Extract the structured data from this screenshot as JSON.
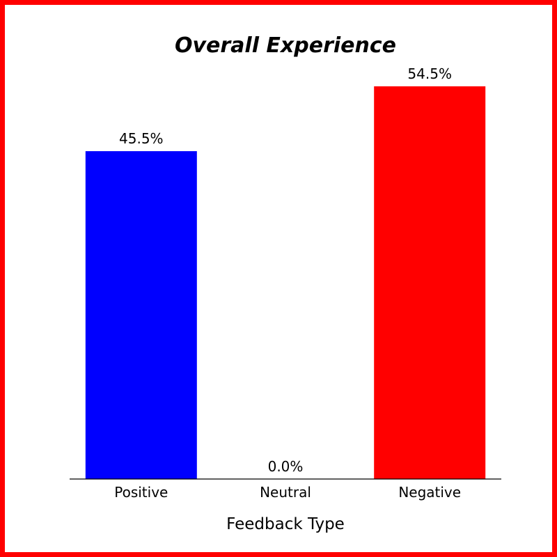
{
  "chart_data": {
    "type": "bar",
    "title": "Overall Experience",
    "xlabel": "Feedback Type",
    "ylabel": "",
    "categories": [
      "Positive",
      "Neutral",
      "Negative"
    ],
    "values": [
      45.5,
      0.0,
      54.5
    ],
    "value_labels": [
      "45.5%",
      "0.0%",
      "54.5%"
    ],
    "colors": [
      "#0000ff",
      "#ffffff",
      "#ff0000"
    ],
    "ylim": [
      0,
      60
    ],
    "grid": false,
    "legend": "none",
    "frame_color": "#ff0000"
  }
}
